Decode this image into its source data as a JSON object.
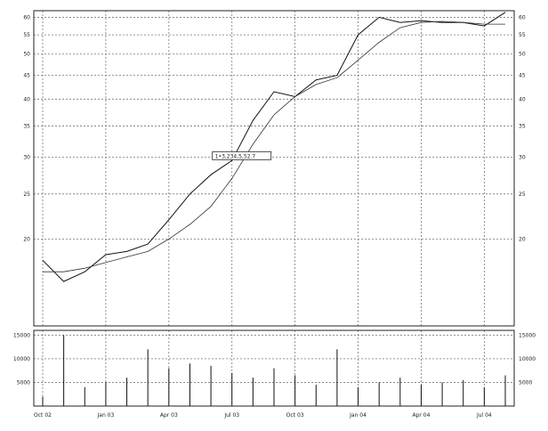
{
  "chart_data": {
    "type": "line",
    "title": "",
    "xlabel": "",
    "ylabel": "",
    "grid": true,
    "price_panel": {
      "ylim": [
        13,
        62
      ],
      "scale": "log",
      "y_ticks": [
        20,
        25,
        30,
        35,
        40,
        45,
        50,
        55,
        60
      ],
      "y_tick_labels": [
        "20",
        "25",
        "30",
        "35",
        "40",
        "45",
        "50",
        "55",
        "60"
      ],
      "series": [
        {
          "style": "price",
          "x": [
            "Oct 02",
            "Nov 02",
            "Dec 02",
            "Jan 03",
            "Feb 03",
            "Mar 03",
            "Apr 03",
            "May 03",
            "Jun 03",
            "Jul 03",
            "Aug 03",
            "Sep 03",
            "Oct 03",
            "Nov 03",
            "Dec 03",
            "Jan 04",
            "Feb 04",
            "Mar 04",
            "Apr 04",
            "May 04",
            "Jun 04",
            "Jul 04",
            "Aug 04"
          ],
          "values": [
            18.0,
            16.2,
            17.0,
            18.5,
            18.8,
            19.5,
            22.0,
            25.0,
            27.5,
            29.5,
            36.0,
            41.5,
            40.5,
            44.0,
            45.0,
            55.0,
            60.0,
            58.5,
            59.0,
            58.5,
            58.5,
            57.5,
            61.5
          ]
        },
        {
          "style": "moving-average",
          "x": [
            "Oct 02",
            "Nov 02",
            "Dec 02",
            "Jan 03",
            "Feb 03",
            "Mar 03",
            "Apr 03",
            "May 03",
            "Jun 03",
            "Jul 03",
            "Aug 03",
            "Sep 03",
            "Oct 03",
            "Nov 03",
            "Dec 03",
            "Jan 04",
            "Feb 04",
            "Mar 04",
            "Apr 04",
            "May 04",
            "Jun 04",
            "Jul 04",
            "Aug 04"
          ],
          "values": [
            17.0,
            17.0,
            17.3,
            17.8,
            18.3,
            18.8,
            20.0,
            21.5,
            23.5,
            27.0,
            32.0,
            37.0,
            40.5,
            43.0,
            44.5,
            48.5,
            53.0,
            57.0,
            58.5,
            58.8,
            58.5,
            58.0,
            58.0
          ]
        }
      ],
      "annotation": "1•3,234,5,52.7"
    },
    "volume_panel": {
      "type": "bar",
      "ylim": [
        0,
        16000
      ],
      "y_ticks": [
        5000,
        10000,
        15000
      ],
      "y_tick_labels": [
        "5000",
        "10000",
        "15000"
      ],
      "x": [
        "Oct 02",
        "Nov 02",
        "Dec 02",
        "Jan 03",
        "Feb 03",
        "Mar 03",
        "Apr 03",
        "May 03",
        "Jun 03",
        "Jul 03",
        "Aug 03",
        "Sep 03",
        "Oct 03",
        "Nov 03",
        "Dec 03",
        "Jan 04",
        "Feb 04",
        "Mar 04",
        "Apr 04",
        "May 04",
        "Jun 04",
        "Jul 04",
        "Aug 04"
      ],
      "values": [
        2000,
        15000,
        4000,
        5000,
        6000,
        12000,
        8000,
        9000,
        8500,
        7000,
        6000,
        8000,
        6500,
        4500,
        12000,
        4000,
        5000,
        6000,
        4500,
        5000,
        5500,
        4000,
        6500
      ]
    },
    "x_ticks": [
      "Oct 02",
      "Jan 03",
      "Apr 03",
      "Jul 03",
      "Oct 03",
      "Jan 04",
      "Apr 04",
      "Jul 04"
    ],
    "x_tick_labels": [
      "Oct 02",
      "Jan 03",
      "Apr 03",
      "Jul 03",
      "Oct 03",
      "Jan 04",
      "Apr 04",
      "Jul 04"
    ]
  },
  "colors": {
    "line": "#111111",
    "grid": "#777777",
    "background": "#ffffff"
  }
}
